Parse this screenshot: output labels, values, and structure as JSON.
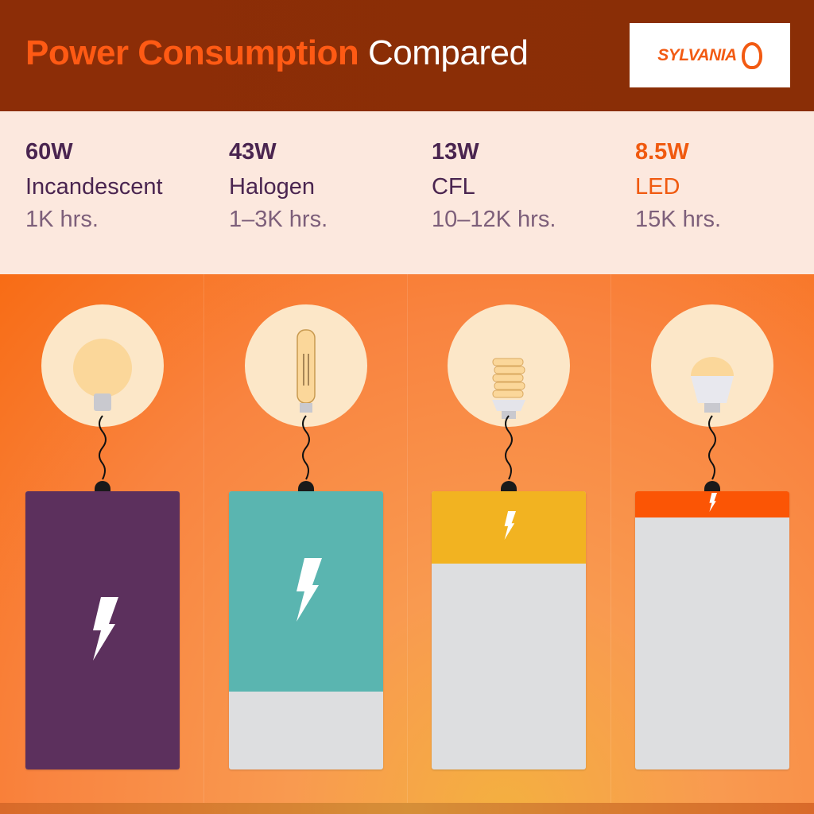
{
  "header": {
    "title_bold": "Power Consumption",
    "title_light": "Compared",
    "logo_text": "SYLVANIA"
  },
  "colors": {
    "header_bg": "#8c2d07",
    "accent": "#ff5a14",
    "band_bg": "#fce8de",
    "empty_bar": "#dddee0"
  },
  "chart_data": {
    "type": "bar",
    "categories": [
      "Incandescent",
      "Halogen",
      "CFL",
      "LED"
    ],
    "series": [
      {
        "values": [
          60,
          43,
          13,
          8.5
        ]
      }
    ],
    "units": "W",
    "fill_fraction": [
      1.0,
      0.72,
      0.26,
      0.095
    ],
    "colors": [
      "#5c305d",
      "#5ab5b0",
      "#f2b321",
      "#fb5505"
    ]
  },
  "items": [
    {
      "watts": "60W",
      "name": "Incandescent",
      "life": "1K hrs.",
      "bulb": "globe-bulb-icon"
    },
    {
      "watts": "43W",
      "name": "Halogen",
      "life": "1–3K hrs.",
      "bulb": "halogen-bulb-icon"
    },
    {
      "watts": "13W",
      "name": "CFL",
      "life": "10–12K hrs.",
      "bulb": "cfl-bulb-icon"
    },
    {
      "watts": "8.5W",
      "name": "LED",
      "life": "15K hrs.",
      "bulb": "led-bulb-icon"
    }
  ]
}
